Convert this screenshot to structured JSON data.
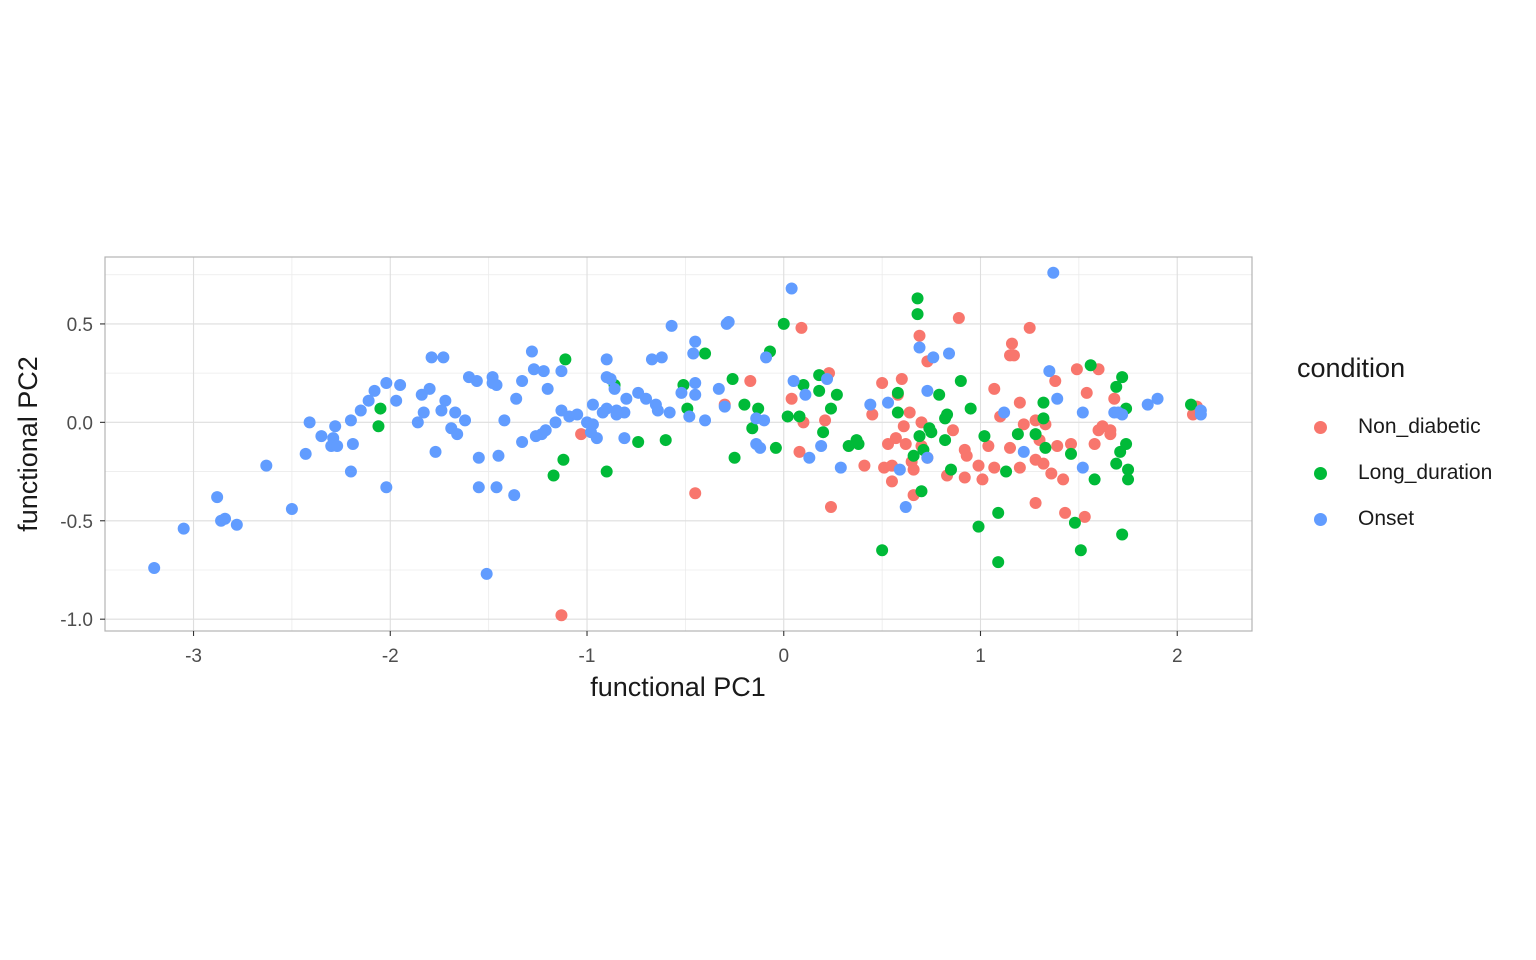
{
  "chart_data": {
    "type": "scatter",
    "xlabel": "functional PC1",
    "ylabel": "functional PC2",
    "xlim": [
      -3.45,
      2.38
    ],
    "ylim": [
      -1.06,
      0.84
    ],
    "x_ticks": [
      -3,
      -2,
      -1,
      0,
      1,
      2
    ],
    "y_ticks": [
      -1.0,
      -0.5,
      0.0,
      0.5
    ],
    "x_tick_labels": [
      "-3",
      "-2",
      "-1",
      "0",
      "1",
      "2"
    ],
    "y_tick_labels": [
      "-1.0",
      "-0.5",
      "0.0",
      "0.5"
    ],
    "grid": true,
    "legend": {
      "title": "condition",
      "position": "right"
    },
    "series": [
      {
        "name": "Non_diabetic",
        "color": "#F8766D",
        "points": [
          [
            0.09,
            0.48
          ],
          [
            0.89,
            0.53
          ],
          [
            1.25,
            0.48
          ],
          [
            0.69,
            0.44
          ],
          [
            1.16,
            0.4
          ],
          [
            1.15,
            0.34
          ],
          [
            1.17,
            0.34
          ],
          [
            0.73,
            0.31
          ],
          [
            1.49,
            0.27
          ],
          [
            1.6,
            0.27
          ],
          [
            0.6,
            0.22
          ],
          [
            1.38,
            0.21
          ],
          [
            -0.17,
            0.21
          ],
          [
            0.5,
            0.2
          ],
          [
            1.07,
            0.17
          ],
          [
            0.23,
            0.25
          ],
          [
            1.54,
            0.15
          ],
          [
            1.68,
            0.12
          ],
          [
            0.04,
            0.12
          ],
          [
            0.58,
            0.14
          ],
          [
            -0.3,
            0.09
          ],
          [
            2.1,
            0.08
          ],
          [
            2.08,
            0.04
          ],
          [
            1.2,
            0.1
          ],
          [
            0.45,
            0.04
          ],
          [
            0.64,
            0.05
          ],
          [
            1.1,
            0.03
          ],
          [
            1.28,
            0.01
          ],
          [
            0.86,
            -0.04
          ],
          [
            0.61,
            -0.02
          ],
          [
            0.7,
            0.0
          ],
          [
            0.1,
            0.0
          ],
          [
            0.21,
            0.01
          ],
          [
            1.22,
            -0.01
          ],
          [
            1.33,
            -0.01
          ],
          [
            -1.03,
            -0.06
          ],
          [
            0.57,
            -0.08
          ],
          [
            0.53,
            -0.11
          ],
          [
            0.62,
            -0.11
          ],
          [
            0.7,
            -0.12
          ],
          [
            0.92,
            -0.14
          ],
          [
            1.15,
            -0.13
          ],
          [
            1.04,
            -0.12
          ],
          [
            1.3,
            -0.09
          ],
          [
            1.39,
            -0.12
          ],
          [
            1.46,
            -0.11
          ],
          [
            1.58,
            -0.11
          ],
          [
            1.66,
            -0.06
          ],
          [
            1.62,
            -0.02
          ],
          [
            1.66,
            -0.04
          ],
          [
            1.6,
            -0.04
          ],
          [
            0.08,
            -0.15
          ],
          [
            0.73,
            -0.18
          ],
          [
            0.93,
            -0.17
          ],
          [
            1.28,
            -0.19
          ],
          [
            0.65,
            -0.2
          ],
          [
            0.41,
            -0.22
          ],
          [
            0.51,
            -0.23
          ],
          [
            0.55,
            -0.22
          ],
          [
            0.99,
            -0.22
          ],
          [
            1.07,
            -0.23
          ],
          [
            1.2,
            -0.23
          ],
          [
            1.32,
            -0.21
          ],
          [
            0.66,
            -0.24
          ],
          [
            0.83,
            -0.27
          ],
          [
            0.92,
            -0.28
          ],
          [
            1.36,
            -0.26
          ],
          [
            1.42,
            -0.29
          ],
          [
            0.55,
            -0.3
          ],
          [
            1.01,
            -0.29
          ],
          [
            0.66,
            -0.37
          ],
          [
            -0.45,
            -0.36
          ],
          [
            1.28,
            -0.41
          ],
          [
            0.24,
            -0.43
          ],
          [
            1.43,
            -0.46
          ],
          [
            1.53,
            -0.48
          ],
          [
            -1.13,
            -0.98
          ]
        ]
      },
      {
        "name": "Long_duration",
        "color": "#00BA38",
        "points": [
          [
            0.68,
            0.63
          ],
          [
            0.68,
            0.55
          ],
          [
            0.0,
            0.5
          ],
          [
            -0.4,
            0.35
          ],
          [
            -0.07,
            0.36
          ],
          [
            -1.11,
            0.32
          ],
          [
            1.56,
            0.29
          ],
          [
            1.72,
            0.23
          ],
          [
            0.18,
            0.24
          ],
          [
            -0.26,
            0.22
          ],
          [
            0.9,
            0.21
          ],
          [
            -0.86,
            0.19
          ],
          [
            -0.51,
            0.19
          ],
          [
            1.69,
            0.18
          ],
          [
            0.1,
            0.19
          ],
          [
            0.18,
            0.16
          ],
          [
            0.58,
            0.15
          ],
          [
            0.79,
            0.14
          ],
          [
            0.27,
            0.14
          ],
          [
            1.32,
            0.1
          ],
          [
            -2.05,
            0.07
          ],
          [
            -0.49,
            0.07
          ],
          [
            -0.2,
            0.09
          ],
          [
            -0.13,
            0.07
          ],
          [
            0.24,
            0.07
          ],
          [
            0.95,
            0.07
          ],
          [
            1.74,
            0.07
          ],
          [
            2.07,
            0.09
          ],
          [
            0.58,
            0.05
          ],
          [
            0.83,
            0.04
          ],
          [
            0.82,
            0.02
          ],
          [
            1.32,
            0.02
          ],
          [
            0.02,
            0.03
          ],
          [
            0.08,
            0.03
          ],
          [
            -0.16,
            -0.03
          ],
          [
            0.74,
            -0.03
          ],
          [
            0.2,
            -0.05
          ],
          [
            0.69,
            -0.07
          ],
          [
            0.75,
            -0.05
          ],
          [
            1.19,
            -0.06
          ],
          [
            1.28,
            -0.06
          ],
          [
            -2.06,
            -0.02
          ],
          [
            -0.6,
            -0.09
          ],
          [
            -0.74,
            -0.1
          ],
          [
            0.37,
            -0.09
          ],
          [
            0.33,
            -0.12
          ],
          [
            0.38,
            -0.11
          ],
          [
            0.82,
            -0.09
          ],
          [
            1.02,
            -0.07
          ],
          [
            1.74,
            -0.11
          ],
          [
            -0.04,
            -0.13
          ],
          [
            0.71,
            -0.14
          ],
          [
            1.33,
            -0.13
          ],
          [
            1.71,
            -0.15
          ],
          [
            -1.12,
            -0.19
          ],
          [
            -0.25,
            -0.18
          ],
          [
            0.66,
            -0.17
          ],
          [
            1.46,
            -0.16
          ],
          [
            1.69,
            -0.21
          ],
          [
            -1.17,
            -0.27
          ],
          [
            -0.9,
            -0.25
          ],
          [
            0.85,
            -0.24
          ],
          [
            1.13,
            -0.25
          ],
          [
            1.75,
            -0.24
          ],
          [
            1.58,
            -0.29
          ],
          [
            1.75,
            -0.29
          ],
          [
            0.7,
            -0.35
          ],
          [
            1.09,
            -0.46
          ],
          [
            0.99,
            -0.53
          ],
          [
            1.48,
            -0.51
          ],
          [
            1.72,
            -0.57
          ],
          [
            0.5,
            -0.65
          ],
          [
            1.51,
            -0.65
          ],
          [
            1.09,
            -0.71
          ]
        ]
      },
      {
        "name": "Onset",
        "color": "#619CFF",
        "points": [
          [
            1.37,
            0.76
          ],
          [
            0.04,
            0.68
          ],
          [
            -0.28,
            0.51
          ],
          [
            -0.29,
            0.5
          ],
          [
            -0.57,
            0.49
          ],
          [
            -0.45,
            0.41
          ],
          [
            -0.46,
            0.35
          ],
          [
            -1.28,
            0.36
          ],
          [
            -0.9,
            0.32
          ],
          [
            -0.67,
            0.32
          ],
          [
            -0.62,
            0.33
          ],
          [
            -1.79,
            0.33
          ],
          [
            -1.73,
            0.33
          ],
          [
            -0.09,
            0.33
          ],
          [
            0.76,
            0.33
          ],
          [
            0.84,
            0.35
          ],
          [
            1.35,
            0.26
          ],
          [
            -1.13,
            0.26
          ],
          [
            -1.27,
            0.27
          ],
          [
            -1.22,
            0.26
          ],
          [
            -1.6,
            0.23
          ],
          [
            -1.48,
            0.23
          ],
          [
            -1.56,
            0.21
          ],
          [
            -1.33,
            0.21
          ],
          [
            -0.9,
            0.23
          ],
          [
            -0.88,
            0.22
          ],
          [
            -2.02,
            0.2
          ],
          [
            -1.95,
            0.19
          ],
          [
            -1.46,
            0.19
          ],
          [
            -1.48,
            0.2
          ],
          [
            -0.45,
            0.2
          ],
          [
            -0.33,
            0.17
          ],
          [
            0.05,
            0.21
          ],
          [
            0.22,
            0.22
          ],
          [
            0.73,
            0.16
          ],
          [
            -2.08,
            0.16
          ],
          [
            -1.8,
            0.17
          ],
          [
            -1.84,
            0.14
          ],
          [
            -1.2,
            0.17
          ],
          [
            -0.74,
            0.15
          ],
          [
            -0.7,
            0.12
          ],
          [
            -0.8,
            0.12
          ],
          [
            -0.86,
            0.17
          ],
          [
            -0.52,
            0.15
          ],
          [
            -0.45,
            0.14
          ],
          [
            1.9,
            0.12
          ],
          [
            -1.97,
            0.11
          ],
          [
            -1.72,
            0.11
          ],
          [
            -1.36,
            0.12
          ],
          [
            -0.97,
            0.09
          ],
          [
            -0.9,
            0.07
          ],
          [
            -0.85,
            0.06
          ],
          [
            -0.65,
            0.09
          ],
          [
            -0.3,
            0.08
          ],
          [
            0.11,
            0.14
          ],
          [
            0.44,
            0.09
          ],
          [
            0.53,
            0.1
          ],
          [
            1.39,
            0.12
          ],
          [
            1.85,
            0.09
          ],
          [
            2.12,
            0.06
          ],
          [
            2.12,
            0.04
          ],
          [
            -2.11,
            0.11
          ],
          [
            -2.15,
            0.06
          ],
          [
            -1.83,
            0.05
          ],
          [
            -1.74,
            0.06
          ],
          [
            -1.67,
            0.05
          ],
          [
            -1.13,
            0.06
          ],
          [
            -1.09,
            0.03
          ],
          [
            -1.05,
            0.04
          ],
          [
            -0.92,
            0.05
          ],
          [
            -0.81,
            0.05
          ],
          [
            -0.64,
            0.06
          ],
          [
            -0.48,
            0.03
          ],
          [
            -0.58,
            0.05
          ],
          [
            -0.14,
            0.02
          ],
          [
            1.52,
            0.05
          ],
          [
            1.68,
            0.05
          ],
          [
            1.72,
            0.04
          ],
          [
            1.7,
            0.05
          ],
          [
            -2.41,
            0.0
          ],
          [
            -2.2,
            0.01
          ],
          [
            -2.28,
            -0.02
          ],
          [
            -1.86,
            0.0
          ],
          [
            -1.62,
            0.01
          ],
          [
            -1.42,
            0.01
          ],
          [
            -1.16,
            0.0
          ],
          [
            -1.0,
            0.0
          ],
          [
            -0.97,
            -0.01
          ],
          [
            -0.85,
            0.04
          ],
          [
            -0.4,
            0.01
          ],
          [
            -0.1,
            0.01
          ],
          [
            1.12,
            0.05
          ],
          [
            -2.35,
            -0.07
          ],
          [
            -2.29,
            -0.08
          ],
          [
            -1.69,
            -0.03
          ],
          [
            -1.66,
            -0.06
          ],
          [
            -1.21,
            -0.04
          ],
          [
            -1.23,
            -0.06
          ],
          [
            -0.98,
            -0.05
          ],
          [
            -0.95,
            -0.08
          ],
          [
            -2.3,
            -0.12
          ],
          [
            -2.27,
            -0.12
          ],
          [
            -2.19,
            -0.11
          ],
          [
            -1.33,
            -0.1
          ],
          [
            -1.26,
            -0.07
          ],
          [
            -0.81,
            -0.08
          ],
          [
            -0.14,
            -0.11
          ],
          [
            -0.12,
            -0.13
          ],
          [
            0.19,
            -0.12
          ],
          [
            -2.43,
            -0.16
          ],
          [
            -1.77,
            -0.15
          ],
          [
            -1.55,
            -0.18
          ],
          [
            -1.45,
            -0.17
          ],
          [
            0.13,
            -0.18
          ],
          [
            1.22,
            -0.15
          ],
          [
            0.73,
            -0.18
          ],
          [
            -2.63,
            -0.22
          ],
          [
            -2.2,
            -0.25
          ],
          [
            0.29,
            -0.23
          ],
          [
            0.59,
            -0.24
          ],
          [
            1.52,
            -0.23
          ],
          [
            -1.55,
            -0.33
          ],
          [
            -2.02,
            -0.33
          ],
          [
            -1.46,
            -0.33
          ],
          [
            -1.37,
            -0.37
          ],
          [
            -2.88,
            -0.38
          ],
          [
            -2.5,
            -0.44
          ],
          [
            0.62,
            -0.43
          ],
          [
            -2.84,
            -0.49
          ],
          [
            -2.86,
            -0.5
          ],
          [
            -2.78,
            -0.52
          ],
          [
            -3.05,
            -0.54
          ],
          [
            -1.51,
            -0.77
          ],
          [
            -3.2,
            -0.74
          ],
          [
            0.69,
            0.38
          ]
        ]
      }
    ]
  }
}
